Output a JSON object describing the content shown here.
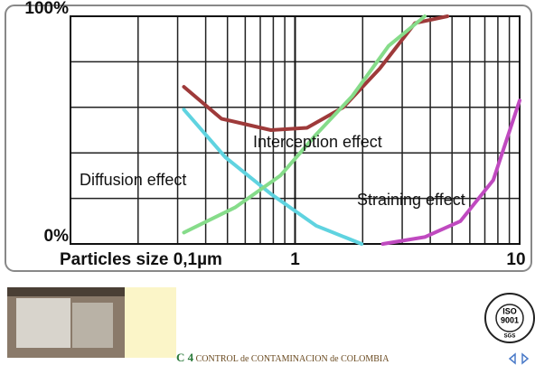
{
  "chart_data": {
    "type": "line",
    "xscale": "log",
    "xlim": [
      0.1,
      10
    ],
    "ylim": [
      0,
      100
    ],
    "xticks": [
      {
        "value": 0.1,
        "label": "Particles size 0,1µm"
      },
      1,
      10
    ],
    "yticks": [
      {
        "value": 0,
        "label": "0%"
      },
      {
        "value": 100,
        "label": "100%"
      }
    ],
    "grid": true,
    "series": [
      {
        "color": "#9e3a3a",
        "x": [
          0.32,
          0.47,
          0.78,
          1.13,
          1.64,
          2.38,
          3.42,
          4.77
        ],
        "values": [
          69,
          55,
          50,
          51,
          60,
          77,
          97,
          100
        ]
      },
      {
        "color": "#5fd3e0",
        "x": [
          0.32,
          0.49,
          0.78,
          1.24,
          1.98
        ],
        "values": [
          59,
          38,
          22,
          8,
          0
        ]
      },
      {
        "color": "#86dc8a",
        "x": [
          0.32,
          0.54,
          0.86,
          1.24,
          1.8,
          2.61,
          3.78
        ],
        "values": [
          5,
          16,
          30,
          48,
          65,
          87,
          100
        ]
      },
      {
        "color": "#c04ac0",
        "x": [
          2.46,
          3.78,
          5.45,
          7.63,
          10
        ],
        "values": [
          0,
          3,
          10,
          28,
          63
        ]
      }
    ],
    "annotations": [
      "Interception effect",
      "Diffusion effect",
      "Straining effect"
    ]
  },
  "footer": {
    "logo": "C 4",
    "company": "CONTROL de CONTAMINACION de COLOMBIA",
    "iso": "ISO",
    "iso_number": "9001",
    "iso_body": "SGS"
  }
}
